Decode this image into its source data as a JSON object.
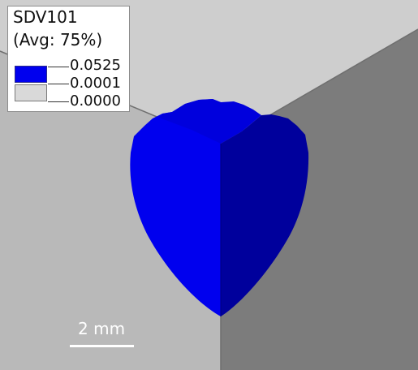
{
  "legend": {
    "title": "SDV101",
    "subtitle": "(Avg: 75%)",
    "ticks": [
      {
        "label": "0.0525"
      },
      {
        "label": "0.0001"
      },
      {
        "label": "0.0000"
      }
    ],
    "bands": [
      {
        "color": "#0000ee"
      },
      {
        "color": "#d9d9d9"
      }
    ]
  },
  "scale_bar": {
    "label": "2 mm"
  },
  "colors": {
    "background": "#ffffff",
    "left_wall": "#b9b9b9",
    "right_wall": "#7c7c7c",
    "top_floor": "#cecece",
    "edge_line": "#6f6f6f",
    "damage_front": "#0000ee",
    "damage_side": "#00009c",
    "damage_top": "#0000dd"
  }
}
